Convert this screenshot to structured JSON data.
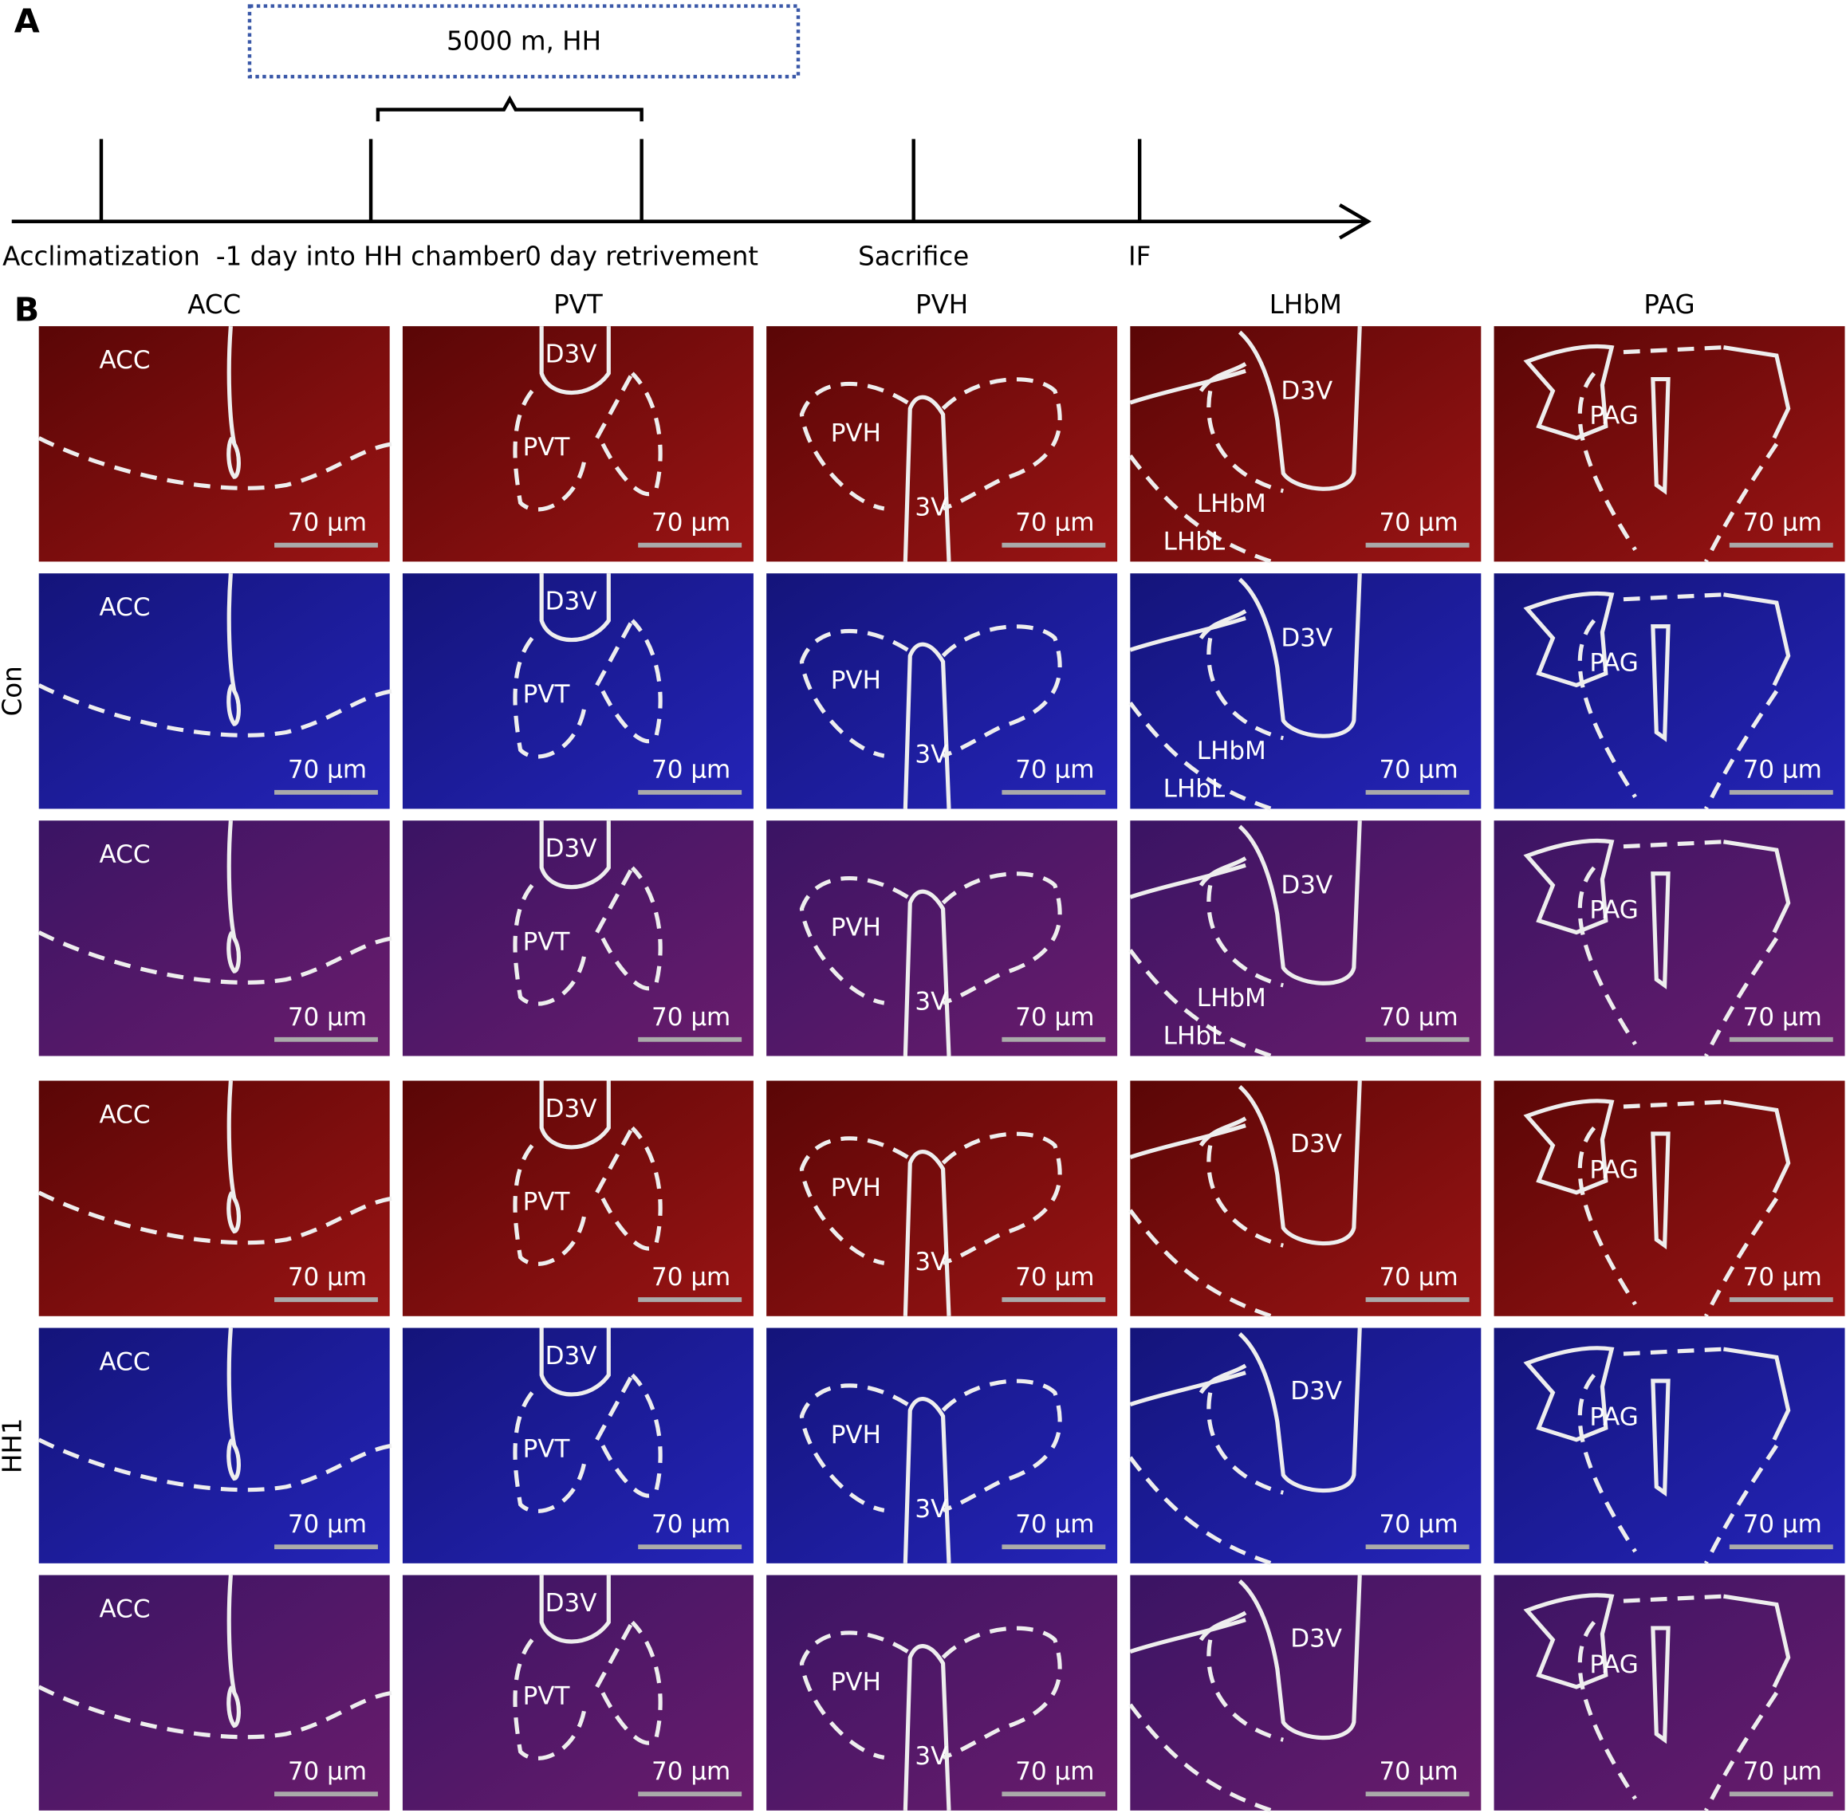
{
  "panel_a": {
    "label": "A",
    "box": "5000 m, HH",
    "timeline": [
      "Acclimatization",
      "-1 day into HH chamber",
      "0 day retrivement",
      "Sacrifice",
      "IF"
    ]
  },
  "panel_b": {
    "label": "B",
    "columns": [
      "ACC",
      "PVT",
      "PVH",
      "LHbM",
      "PAG"
    ],
    "groups": [
      {
        "name": "Con",
        "rows": [
          [
            {
              "labels": [
                "ACC"
              ],
              "scale_bar": "70 μm"
            },
            {
              "labels": [
                "D3V",
                "PVT"
              ],
              "scale_bar": "70 μm"
            },
            {
              "labels": [
                "PVH",
                "3V"
              ],
              "scale_bar": "70 μm"
            },
            {
              "labels": [
                "D3V",
                "LHbM",
                "LHbL"
              ],
              "scale_bar": "70 μm"
            },
            {
              "labels": [
                "PAG"
              ],
              "scale_bar": "70 μm"
            }
          ],
          [
            {
              "labels": [
                "ACC"
              ],
              "scale_bar": "70 μm"
            },
            {
              "labels": [
                "D3V",
                "PVT"
              ],
              "scale_bar": "70 μm"
            },
            {
              "labels": [
                "PVH",
                "3V"
              ],
              "scale_bar": "70 μm"
            },
            {
              "labels": [
                "D3V",
                "LHbM",
                "LHbL"
              ],
              "scale_bar": "70 μm"
            },
            {
              "labels": [
                "PAG"
              ],
              "scale_bar": "70 μm"
            }
          ],
          [
            {
              "labels": [
                "ACC"
              ],
              "scale_bar": "70 μm"
            },
            {
              "labels": [
                "D3V",
                "PVT"
              ],
              "scale_bar": "70 μm"
            },
            {
              "labels": [
                "PVH",
                "3V"
              ],
              "scale_bar": "70 μm"
            },
            {
              "labels": [
                "D3V",
                "LHbM",
                "LHbL"
              ],
              "scale_bar": "70 μm"
            },
            {
              "labels": [
                "PAG"
              ],
              "scale_bar": "70 μm"
            }
          ]
        ]
      },
      {
        "name": "HH1",
        "rows": [
          [
            {
              "labels": [
                "ACC"
              ],
              "scale_bar": "70 μm"
            },
            {
              "labels": [
                "D3V",
                "PVT"
              ],
              "scale_bar": "70 μm"
            },
            {
              "labels": [
                "PVH",
                "3V"
              ],
              "scale_bar": "70 μm"
            },
            {
              "labels": [
                "D3V"
              ],
              "scale_bar": "70 μm"
            },
            {
              "labels": [
                "PAG"
              ],
              "scale_bar": "70 μm"
            }
          ],
          [
            {
              "labels": [
                "ACC"
              ],
              "scale_bar": "70 μm"
            },
            {
              "labels": [
                "D3V",
                "PVT"
              ],
              "scale_bar": "70 μm"
            },
            {
              "labels": [
                "PVH",
                "3V"
              ],
              "scale_bar": "70 μm"
            },
            {
              "labels": [
                "D3V"
              ],
              "scale_bar": "70 μm"
            },
            {
              "labels": [
                "PAG"
              ],
              "scale_bar": "70 μm"
            }
          ],
          [
            {
              "labels": [
                "ACC"
              ],
              "scale_bar": "70 μm"
            },
            {
              "labels": [
                "D3V",
                "PVT"
              ],
              "scale_bar": "70 μm"
            },
            {
              "labels": [
                "PVH",
                "3V"
              ],
              "scale_bar": "70 μm"
            },
            {
              "labels": [
                "D3V"
              ],
              "scale_bar": "70 μm"
            },
            {
              "labels": [
                "PAG"
              ],
              "scale_bar": "70 μm"
            }
          ]
        ]
      }
    ]
  }
}
